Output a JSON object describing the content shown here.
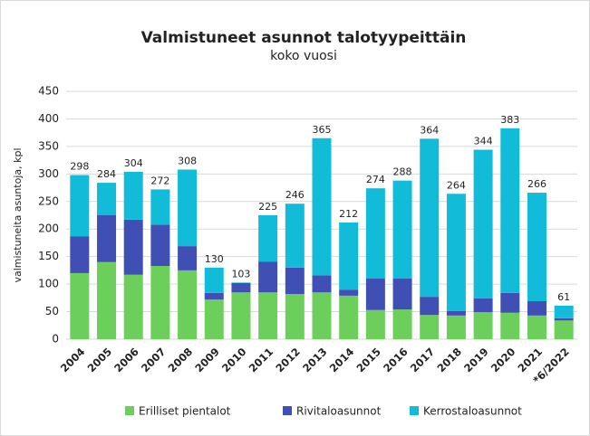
{
  "chart_data": {
    "type": "bar",
    "stacked": true,
    "title": "Valmistuneet asunnot talotyypeittäin",
    "subtitle": "koko vuosi",
    "y_label": "valmistuneita asuntoja, kpl",
    "categories": [
      "2004",
      "2005",
      "2006",
      "2007",
      "2008",
      "2009",
      "2010",
      "2011",
      "2012",
      "2013",
      "2014",
      "2015",
      "2016",
      "2017",
      "2018",
      "2019",
      "2020",
      "2021",
      "*6/2022"
    ],
    "series": [
      {
        "name": "Erilliset pientalot",
        "color": "#6dcf5b",
        "values": [
          120,
          140,
          117,
          133,
          125,
          72,
          85,
          85,
          82,
          85,
          79,
          53,
          54,
          44,
          43,
          49,
          48,
          43,
          34
        ]
      },
      {
        "name": "Rivitaloasunnot",
        "color": "#3f4fb4",
        "values": [
          67,
          85,
          100,
          75,
          44,
          12,
          17,
          56,
          48,
          31,
          11,
          57,
          56,
          33,
          8,
          25,
          36,
          26,
          4
        ]
      },
      {
        "name": "Kerrostaloasunnot",
        "color": "#12bcd8",
        "values": [
          111,
          59,
          87,
          64,
          139,
          46,
          1,
          84,
          116,
          249,
          122,
          164,
          178,
          287,
          213,
          270,
          299,
          197,
          23
        ]
      }
    ],
    "totals": [
      298,
      284,
      304,
      272,
      308,
      130,
      103,
      225,
      246,
      365,
      212,
      274,
      288,
      364,
      264,
      344,
      383,
      266,
      61
    ],
    "ylim": [
      0,
      450
    ],
    "yticks": [
      0,
      50,
      100,
      150,
      200,
      250,
      300,
      350,
      400,
      450
    ],
    "grid": true
  }
}
